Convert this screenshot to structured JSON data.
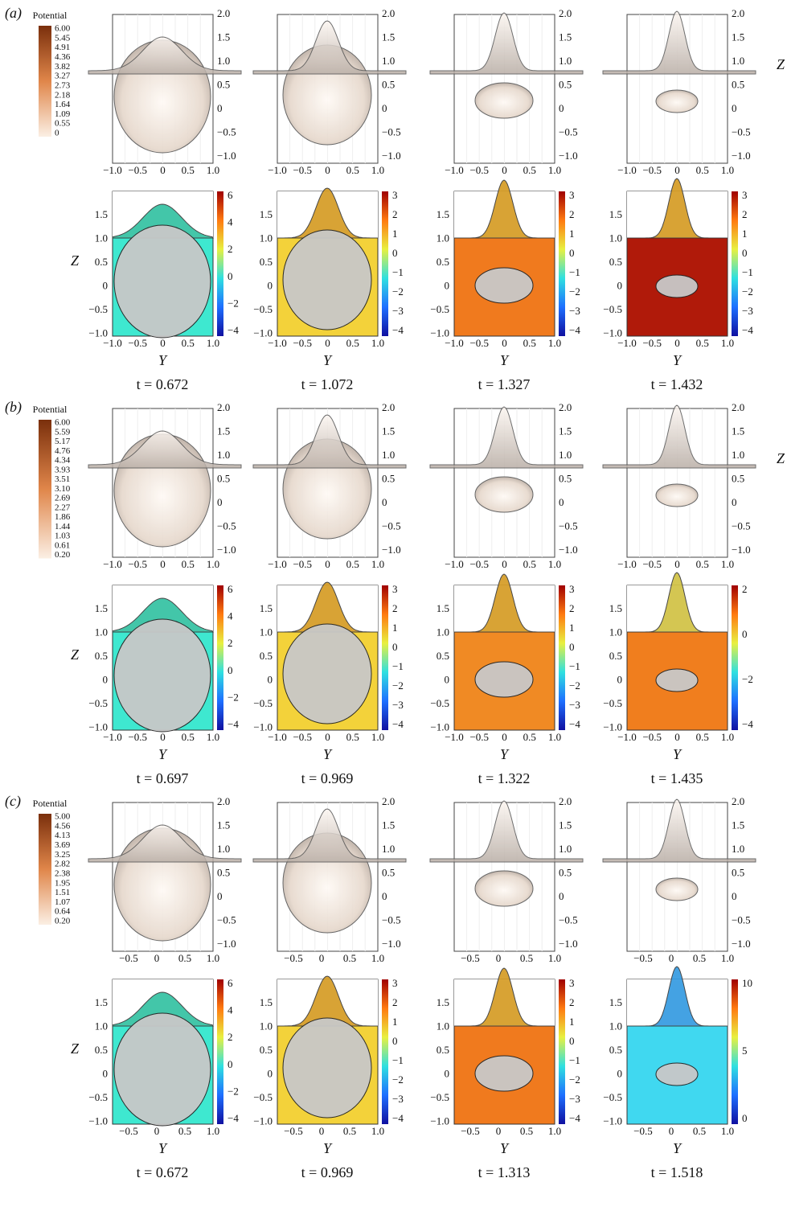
{
  "panels": [
    {
      "label": "(a)",
      "legend": {
        "title": "Potential",
        "ticks": [
          "6.00",
          "5.45",
          "4.91",
          "4.36",
          "3.82",
          "3.27",
          "2.73",
          "2.18",
          "1.64",
          "1.09",
          "0.55",
          "0"
        ]
      },
      "x_ticks": [
        "−1.0",
        "−0.5",
        "0",
        "0.5",
        "1.0"
      ],
      "top_z_ticks": [
        "2.0",
        "1.5",
        "1.0",
        "0.5",
        "0",
        "−0.5",
        "−1.0"
      ],
      "bottom_z_ticks": [
        "1.5",
        "1.0",
        "0.5",
        "0",
        "−0.5",
        "−1.0"
      ],
      "y_label": "Y",
      "z_label": "Z",
      "columns": [
        {
          "time": "t = 0.672",
          "colorbar_ticks": [
            "6",
            "4",
            "2",
            "0",
            "−2",
            "−4"
          ]
        },
        {
          "time": "t = 1.072",
          "colorbar_ticks": [
            "3",
            "2",
            "1",
            "0",
            "−1",
            "−2",
            "−3",
            "−4"
          ]
        },
        {
          "time": "t = 1.327",
          "colorbar_ticks": [
            "3",
            "2",
            "1",
            "0",
            "−1",
            "−2",
            "−3",
            "−4"
          ]
        },
        {
          "time": "t = 1.432",
          "colorbar_ticks": [
            "3",
            "2",
            "1",
            "0",
            "−1",
            "−2",
            "−3",
            "−4"
          ]
        }
      ]
    },
    {
      "label": "(b)",
      "legend": {
        "title": "Potential",
        "ticks": [
          "6.00",
          "5.59",
          "5.17",
          "4.76",
          "4.34",
          "3.93",
          "3.51",
          "3.10",
          "2.69",
          "2.27",
          "1.86",
          "1.44",
          "1.03",
          "0.61",
          "0.20"
        ]
      },
      "x_ticks": [
        "−1.0",
        "−0.5",
        "0",
        "0.5",
        "1.0"
      ],
      "top_z_ticks": [
        "2.0",
        "1.5",
        "1.0",
        "0.5",
        "0",
        "−0.5",
        "−1.0"
      ],
      "bottom_z_ticks": [
        "1.5",
        "1.0",
        "0.5",
        "0",
        "−0.5",
        "−1.0"
      ],
      "y_label": "Y",
      "z_label": "Z",
      "columns": [
        {
          "time": "t = 0.697",
          "colorbar_ticks": [
            "6",
            "4",
            "2",
            "0",
            "−2",
            "−4"
          ]
        },
        {
          "time": "t = 0.969",
          "colorbar_ticks": [
            "3",
            "2",
            "1",
            "0",
            "−1",
            "−2",
            "−3",
            "−4"
          ]
        },
        {
          "time": "t = 1.322",
          "colorbar_ticks": [
            "3",
            "2",
            "1",
            "0",
            "−1",
            "−2",
            "−3",
            "−4"
          ]
        },
        {
          "time": "t = 1.435",
          "colorbar_ticks": [
            "2",
            "0",
            "−2",
            "−4"
          ]
        }
      ]
    },
    {
      "label": "(c)",
      "legend": {
        "title": "Potential",
        "ticks": [
          "5.00",
          "4.56",
          "4.13",
          "3.69",
          "3.25",
          "2.82",
          "2.38",
          "1.95",
          "1.51",
          "1.07",
          "0.64",
          "0.20"
        ]
      },
      "x_ticks": [
        "−0.5",
        "0",
        "0.5",
        "1.0"
      ],
      "top_z_ticks": [
        "2.0",
        "1.5",
        "1.0",
        "0.5",
        "0",
        "−0.5",
        "−1.0"
      ],
      "bottom_z_ticks": [
        "1.5",
        "1.0",
        "0.5",
        "0",
        "−0.5",
        "−1.0"
      ],
      "y_label": "Y",
      "z_label": "Z",
      "columns": [
        {
          "time": "t = 0.672",
          "colorbar_ticks": [
            "6",
            "4",
            "2",
            "0",
            "−2",
            "−4"
          ]
        },
        {
          "time": "t = 0.969",
          "colorbar_ticks": [
            "3",
            "2",
            "1",
            "0",
            "−1",
            "−2",
            "−3",
            "−4"
          ]
        },
        {
          "time": "t = 1.313",
          "colorbar_ticks": [
            "3",
            "2",
            "1",
            "0",
            "−1",
            "−2",
            "−3",
            "−4"
          ]
        },
        {
          "time": "t = 1.518",
          "colorbar_ticks": [
            "10",
            "5",
            "0"
          ]
        }
      ]
    }
  ]
}
